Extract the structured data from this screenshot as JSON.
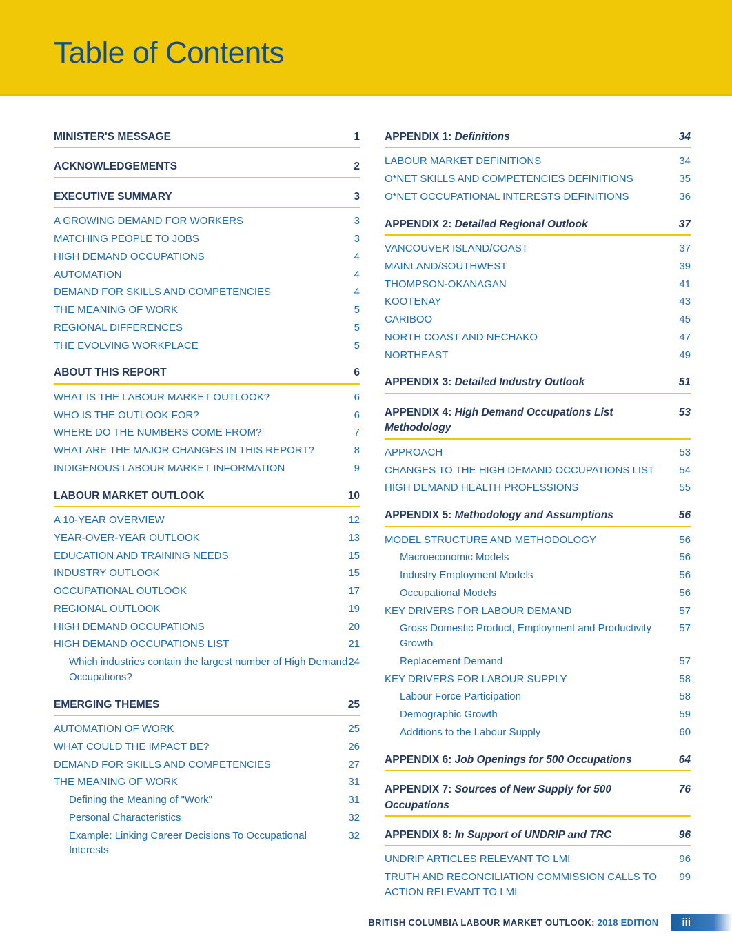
{
  "page": {
    "title": "Table of Contents",
    "footer_label": "BRITISH COLUMBIA LABOUR MARKET OUTLOOK:",
    "footer_edition": "2018 EDITION",
    "footer_pagenum": "iii"
  },
  "colors": {
    "accent_yellow": "#f0c808",
    "heading_navy": "#23395d",
    "link_blue": "#1f6bb0",
    "title_blue": "#104f8f"
  },
  "left": [
    {
      "kind": "section",
      "label": "MINISTER'S MESSAGE",
      "page": "1"
    },
    {
      "kind": "section",
      "label": "ACKNOWLEDGEMENTS",
      "page": "2"
    },
    {
      "kind": "section",
      "label": "EXECUTIVE SUMMARY",
      "page": "3"
    },
    {
      "kind": "l1",
      "label": "A GROWING DEMAND FOR WORKERS",
      "page": "3"
    },
    {
      "kind": "l1",
      "label": "MATCHING PEOPLE TO JOBS",
      "page": "3"
    },
    {
      "kind": "l1",
      "label": "HIGH DEMAND OCCUPATIONS",
      "page": "4"
    },
    {
      "kind": "l1",
      "label": "AUTOMATION",
      "page": "4"
    },
    {
      "kind": "l1",
      "label": "DEMAND FOR SKILLS AND COMPETENCIES",
      "page": "4"
    },
    {
      "kind": "l1",
      "label": "THE MEANING OF WORK",
      "page": "5"
    },
    {
      "kind": "l1",
      "label": "REGIONAL DIFFERENCES",
      "page": "5"
    },
    {
      "kind": "l1",
      "label": "THE EVOLVING WORKPLACE",
      "page": "5"
    },
    {
      "kind": "section",
      "label": "ABOUT THIS REPORT",
      "page": "6"
    },
    {
      "kind": "l1",
      "label": "WHAT IS THE LABOUR MARKET OUTLOOK?",
      "page": "6"
    },
    {
      "kind": "l1",
      "label": "WHO IS THE OUTLOOK FOR?",
      "page": "6"
    },
    {
      "kind": "l1",
      "label": "WHERE DO THE NUMBERS COME FROM?",
      "page": "7"
    },
    {
      "kind": "l1",
      "label": "WHAT ARE THE MAJOR CHANGES IN THIS REPORT?",
      "page": "8"
    },
    {
      "kind": "l1",
      "label": "INDIGENOUS LABOUR MARKET INFORMATION",
      "page": "9"
    },
    {
      "kind": "section",
      "label": "LABOUR MARKET OUTLOOK",
      "page": "10"
    },
    {
      "kind": "l1",
      "label": "A 10-YEAR OVERVIEW",
      "page": "12"
    },
    {
      "kind": "l1",
      "label": "YEAR-OVER-YEAR OUTLOOK",
      "page": "13"
    },
    {
      "kind": "l1",
      "label": "EDUCATION AND TRAINING NEEDS",
      "page": "15"
    },
    {
      "kind": "l1",
      "label": "INDUSTRY OUTLOOK",
      "page": "15"
    },
    {
      "kind": "l1",
      "label": "OCCUPATIONAL OUTLOOK",
      "page": "17"
    },
    {
      "kind": "l1",
      "label": "REGIONAL OUTLOOK",
      "page": "19"
    },
    {
      "kind": "l1",
      "label": "HIGH DEMAND OCCUPATIONS",
      "page": "20"
    },
    {
      "kind": "l1",
      "label": "HIGH DEMAND OCCUPATIONS LIST",
      "page": "21"
    },
    {
      "kind": "l2",
      "label": "Which industries contain the largest number of High Demand Occupations?",
      "page": "24"
    },
    {
      "kind": "section",
      "label": "EMERGING THEMES",
      "page": "25"
    },
    {
      "kind": "l1",
      "label": "AUTOMATION OF WORK",
      "page": "25"
    },
    {
      "kind": "l1",
      "label": "WHAT COULD THE IMPACT BE?",
      "page": "26"
    },
    {
      "kind": "l1",
      "label": "DEMAND FOR SKILLS AND COMPETENCIES",
      "page": "27"
    },
    {
      "kind": "l1",
      "label": "THE MEANING OF WORK",
      "page": "31"
    },
    {
      "kind": "l2",
      "label": "Defining the Meaning of \"Work\"",
      "page": "31"
    },
    {
      "kind": "l2",
      "label": "Personal Characteristics",
      "page": "32"
    },
    {
      "kind": "l2",
      "label": "Example: Linking Career Decisions To Occupational Interests",
      "page": "32"
    }
  ],
  "right": [
    {
      "kind": "section-italic",
      "prefix": "APPENDIX 1:",
      "rest": " Definitions",
      "page": "34"
    },
    {
      "kind": "l1",
      "label": "LABOUR MARKET DEFINITIONS",
      "page": "34"
    },
    {
      "kind": "l1",
      "label": "O*NET SKILLS AND COMPETENCIES DEFINITIONS",
      "page": "35"
    },
    {
      "kind": "l1",
      "label": "O*NET OCCUPATIONAL INTERESTS DEFINITIONS",
      "page": "36"
    },
    {
      "kind": "section-italic",
      "prefix": "APPENDIX 2:",
      "rest": " Detailed Regional Outlook",
      "page": "37"
    },
    {
      "kind": "l1",
      "label": "VANCOUVER ISLAND/COAST",
      "page": "37"
    },
    {
      "kind": "l1",
      "label": "MAINLAND/SOUTHWEST",
      "page": "39"
    },
    {
      "kind": "l1",
      "label": "THOMPSON-OKANAGAN",
      "page": "41"
    },
    {
      "kind": "l1",
      "label": "KOOTENAY",
      "page": "43"
    },
    {
      "kind": "l1",
      "label": "CARIBOO",
      "page": "45"
    },
    {
      "kind": "l1",
      "label": "NORTH COAST AND NECHAKO",
      "page": "47"
    },
    {
      "kind": "l1",
      "label": "NORTHEAST",
      "page": "49"
    },
    {
      "kind": "section-italic",
      "prefix": "APPENDIX 3:",
      "rest": " Detailed Industry Outlook",
      "page": "51"
    },
    {
      "kind": "section-italic",
      "prefix": "APPENDIX 4:",
      "rest": " High Demand Occupations List Methodology",
      "page": "53"
    },
    {
      "kind": "l1",
      "label": "APPROACH",
      "page": "53"
    },
    {
      "kind": "l1",
      "label": "CHANGES TO THE HIGH DEMAND OCCUPATIONS LIST",
      "page": "54"
    },
    {
      "kind": "l1",
      "label": "HIGH DEMAND HEALTH PROFESSIONS",
      "page": "55"
    },
    {
      "kind": "section-italic",
      "prefix": "APPENDIX 5:",
      "rest": " Methodology and Assumptions",
      "page": "56"
    },
    {
      "kind": "l1",
      "label": "MODEL STRUCTURE AND METHODOLOGY",
      "page": "56"
    },
    {
      "kind": "l2",
      "label": "Macroeconomic Models",
      "page": "56"
    },
    {
      "kind": "l2",
      "label": "Industry Employment Models",
      "page": "56"
    },
    {
      "kind": "l2",
      "label": "Occupational Models",
      "page": "56"
    },
    {
      "kind": "l1",
      "label": "KEY DRIVERS FOR LABOUR DEMAND",
      "page": "57"
    },
    {
      "kind": "l2",
      "label": "Gross Domestic Product, Employment and Productivity Growth",
      "page": "57"
    },
    {
      "kind": "l2",
      "label": "Replacement Demand",
      "page": "57"
    },
    {
      "kind": "l1",
      "label": "KEY DRIVERS FOR LABOUR SUPPLY",
      "page": "58"
    },
    {
      "kind": "l2",
      "label": "Labour Force Participation",
      "page": "58"
    },
    {
      "kind": "l2",
      "label": "Demographic Growth",
      "page": "59"
    },
    {
      "kind": "l2",
      "label": "Additions to the Labour Supply",
      "page": "60"
    },
    {
      "kind": "section-italic",
      "prefix": "APPENDIX 6:",
      "rest": " Job Openings for 500 Occupations",
      "page": "64"
    },
    {
      "kind": "section-italic",
      "prefix": "APPENDIX 7:",
      "rest": " Sources of New Supply for 500 Occupations",
      "page": "76"
    },
    {
      "kind": "section-italic",
      "prefix": "APPENDIX 8:",
      "rest": " In Support of UNDRIP and TRC",
      "page": "96"
    },
    {
      "kind": "l1",
      "label": "UNDRIP ARTICLES RELEVANT TO LMI",
      "page": "96"
    },
    {
      "kind": "l1",
      "label": "TRUTH AND RECONCILIATION COMMISSION CALLS TO ACTION RELEVANT TO LMI",
      "page": "99"
    }
  ]
}
